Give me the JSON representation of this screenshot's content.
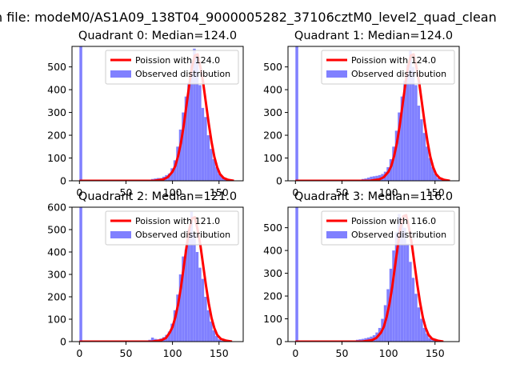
{
  "figure": {
    "suptitle": "n file: modeM0/AS1A09_138T04_9000005282_37106cztM0_level2_quad_clean"
  },
  "colors": {
    "fit_line": "#ff0000",
    "observed_bars": "#8080ff",
    "legend_border": "#cccccc",
    "axes": "#000000"
  },
  "chart_data": [
    {
      "type": "bar",
      "title": "Quadrant 0: Median=124.0",
      "median": 124.0,
      "xlim": [
        -8,
        176
      ],
      "ylim": [
        0,
        590
      ],
      "xticks": [
        0,
        50,
        100,
        150
      ],
      "yticks": [
        0,
        100,
        200,
        300,
        400,
        500
      ],
      "legend": {
        "placement": "top-right",
        "fit_label": "Poission with 124.0",
        "observed_label": "Observed distribution"
      },
      "observed": {
        "bin_start": [
          0,
          77,
          80,
          83,
          86,
          89,
          92,
          95,
          98,
          101,
          104,
          107,
          110,
          113,
          116,
          119,
          122,
          125,
          128,
          131,
          134,
          137,
          140,
          143,
          146,
          149,
          152,
          155,
          158
        ],
        "bin_width": 3,
        "values": [
          590,
          8,
          10,
          12,
          12,
          18,
          25,
          32,
          55,
          90,
          150,
          225,
          300,
          370,
          430,
          520,
          580,
          550,
          420,
          320,
          280,
          200,
          140,
          95,
          60,
          30,
          18,
          8,
          4
        ]
      },
      "fit": {
        "x": [
          0,
          80,
          90,
          95,
          100,
          103,
          106,
          109,
          112,
          115,
          118,
          121,
          124,
          127,
          130,
          133,
          136,
          139,
          142,
          145,
          148,
          151,
          155,
          160,
          166
        ],
        "y": [
          0,
          0,
          6,
          16,
          40,
          65,
          108,
          165,
          240,
          330,
          420,
          500,
          550,
          555,
          500,
          430,
          340,
          250,
          170,
          105,
          60,
          30,
          12,
          4,
          0
        ]
      }
    },
    {
      "type": "bar",
      "title": "Quadrant 1: Median=124.0",
      "median": 124.0,
      "xlim": [
        -8,
        176
      ],
      "ylim": [
        0,
        590
      ],
      "xticks": [
        0,
        50,
        100,
        150
      ],
      "yticks": [
        0,
        100,
        200,
        300,
        400,
        500
      ],
      "legend": {
        "placement": "top-right",
        "fit_label": "Poission with 124.0",
        "observed_label": "Observed distribution"
      },
      "observed": {
        "bin_start": [
          0,
          71,
          74,
          77,
          80,
          83,
          86,
          89,
          92,
          95,
          98,
          101,
          104,
          107,
          110,
          113,
          116,
          119,
          122,
          125,
          128,
          131,
          134,
          137,
          140,
          143,
          146,
          149,
          152,
          155
        ],
        "bin_width": 3,
        "values": [
          590,
          8,
          10,
          14,
          18,
          20,
          22,
          25,
          30,
          40,
          60,
          95,
          150,
          220,
          300,
          370,
          440,
          510,
          570,
          500,
          420,
          330,
          270,
          210,
          150,
          100,
          60,
          30,
          12,
          5
        ]
      },
      "fit": {
        "x": [
          0,
          80,
          90,
          95,
          100,
          103,
          106,
          109,
          112,
          115,
          118,
          121,
          124,
          127,
          130,
          133,
          136,
          139,
          142,
          145,
          148,
          151,
          155,
          160,
          166
        ],
        "y": [
          0,
          0,
          6,
          16,
          40,
          65,
          108,
          165,
          240,
          330,
          420,
          500,
          550,
          555,
          500,
          430,
          340,
          250,
          170,
          105,
          60,
          30,
          12,
          4,
          0
        ]
      }
    },
    {
      "type": "bar",
      "title": "Quadrant 2: Median=121.0",
      "median": 121.0,
      "xlim": [
        -8,
        176
      ],
      "ylim": [
        0,
        600
      ],
      "xticks": [
        0,
        50,
        100,
        150
      ],
      "yticks": [
        0,
        100,
        200,
        300,
        400,
        500,
        600
      ],
      "legend": {
        "placement": "top-right",
        "fit_label": "Poission with 121.0",
        "observed_label": "Observed distribution"
      },
      "observed": {
        "bin_start": [
          0,
          74,
          77,
          80,
          83,
          86,
          89,
          92,
          95,
          98,
          101,
          104,
          107,
          110,
          113,
          116,
          119,
          122,
          125,
          128,
          131,
          134,
          137,
          140,
          143,
          146,
          149,
          152
        ],
        "bin_width": 3,
        "values": [
          600,
          8,
          18,
          12,
          10,
          14,
          20,
          30,
          45,
          80,
          140,
          210,
          300,
          380,
          410,
          500,
          580,
          480,
          400,
          330,
          280,
          200,
          140,
          90,
          50,
          25,
          10,
          4
        ]
      },
      "fit": {
        "x": [
          0,
          78,
          88,
          93,
          97,
          100,
          103,
          106,
          109,
          112,
          115,
          118,
          121,
          124,
          127,
          130,
          133,
          136,
          139,
          142,
          145,
          148,
          152,
          158,
          164
        ],
        "y": [
          0,
          0,
          6,
          16,
          40,
          65,
          108,
          165,
          240,
          330,
          420,
          500,
          550,
          555,
          500,
          430,
          340,
          250,
          170,
          105,
          60,
          30,
          12,
          4,
          0
        ]
      }
    },
    {
      "type": "bar",
      "title": "Quadrant 3: Median=116.0",
      "median": 116.0,
      "xlim": [
        -8,
        176
      ],
      "ylim": [
        0,
        590
      ],
      "xticks": [
        0,
        50,
        100,
        150
      ],
      "yticks": [
        0,
        100,
        200,
        300,
        400,
        500
      ],
      "legend": {
        "placement": "top-right",
        "fit_label": "Poission with 116.0",
        "observed_label": "Observed distribution"
      },
      "observed": {
        "bin_start": [
          0,
          65,
          68,
          71,
          74,
          77,
          80,
          83,
          86,
          89,
          92,
          95,
          98,
          101,
          104,
          107,
          110,
          113,
          116,
          119,
          122,
          125,
          128,
          131,
          134,
          137,
          140,
          143,
          146,
          149
        ],
        "bin_width": 3,
        "values": [
          590,
          8,
          10,
          12,
          15,
          18,
          22,
          28,
          40,
          60,
          100,
          160,
          230,
          320,
          400,
          480,
          560,
          540,
          500,
          430,
          350,
          280,
          210,
          150,
          100,
          60,
          35,
          15,
          6,
          3
        ]
      },
      "fit": {
        "x": [
          0,
          72,
          82,
          87,
          92,
          95,
          98,
          101,
          104,
          107,
          110,
          113,
          116,
          119,
          122,
          125,
          128,
          131,
          134,
          137,
          140,
          143,
          147,
          153,
          159
        ],
        "y": [
          0,
          0,
          6,
          16,
          40,
          65,
          108,
          165,
          240,
          330,
          420,
          500,
          550,
          555,
          500,
          430,
          340,
          250,
          170,
          105,
          60,
          30,
          12,
          4,
          0
        ]
      }
    }
  ]
}
